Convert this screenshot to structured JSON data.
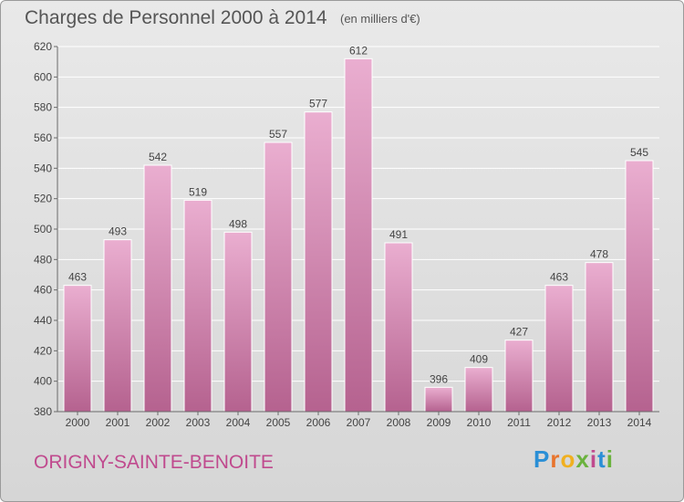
{
  "header": {
    "title": "Charges de Personnel 2000 à 2014",
    "subtitle": "(en milliers d'€)"
  },
  "place": "ORIGNY-SAINTE-BENOITE",
  "logo": {
    "letters": [
      "P",
      "r",
      "o",
      "x",
      "i",
      "t",
      "i"
    ],
    "colors": [
      "#2a8fd6",
      "#e8742c",
      "#f0b020",
      "#6ab23d",
      "#c04a8e",
      "#2a8fd6",
      "#6ab23d"
    ]
  },
  "colors": {
    "bar_light": "#eaaed0",
    "bar_dark": "#b5628f",
    "grid": "#ffffff",
    "axis": "#6a6a6a",
    "accent": "#c04a8e"
  },
  "chart_data": {
    "type": "bar",
    "title": "Charges de Personnel 2000 à 2014",
    "subtitle": "(en milliers d'€)",
    "categories": [
      "2000",
      "2001",
      "2002",
      "2003",
      "2004",
      "2005",
      "2006",
      "2007",
      "2008",
      "2009",
      "2010",
      "2011",
      "2012",
      "2013",
      "2014"
    ],
    "values": [
      463,
      493,
      542,
      519,
      498,
      557,
      577,
      612,
      491,
      396,
      409,
      427,
      463,
      478,
      545
    ],
    "ylim": [
      380,
      620
    ],
    "yticks": [
      380,
      400,
      420,
      440,
      460,
      480,
      500,
      520,
      540,
      560,
      580,
      600,
      620
    ],
    "grid": true,
    "data_labels": true,
    "xlabel": "",
    "ylabel": ""
  }
}
